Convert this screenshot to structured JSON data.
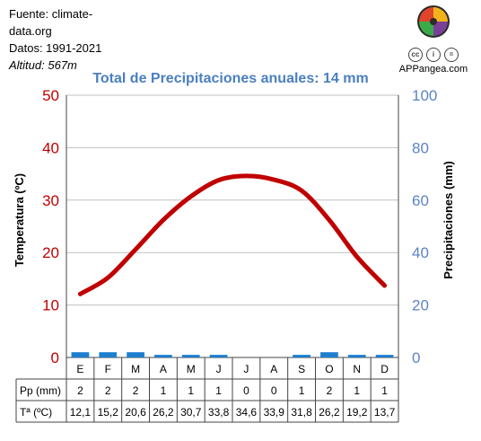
{
  "source": {
    "line1": "Fuente: climate-",
    "line2": "data.org",
    "period": "Datos: 1991-2021",
    "altitude": "Altitud: 567m"
  },
  "brand": {
    "site": "APPangea.com"
  },
  "colors": {
    "temp": "#c00000",
    "precip": "#1e7fd0",
    "axis_right": "#5b84c4",
    "title": "#4a7fc0"
  },
  "chart_data": {
    "type": "line",
    "title": "Total de Precipitaciones anuales: 14 mm",
    "categories": [
      "E",
      "F",
      "M",
      "A",
      "M",
      "J",
      "J",
      "A",
      "S",
      "O",
      "N",
      "D"
    ],
    "series": [
      {
        "name": "Tª (ºC)",
        "values": [
          12.1,
          15.2,
          20.6,
          26.2,
          30.7,
          33.8,
          34.6,
          33.9,
          31.8,
          26.2,
          19.2,
          13.7
        ]
      },
      {
        "name": "Pp (mm)",
        "values": [
          2,
          2,
          2,
          1,
          1,
          1,
          0,
          0,
          1,
          2,
          1,
          1
        ]
      }
    ],
    "ylabel_left": "Temperatura (ºC)",
    "ylabel_right": "Precipitaciones (mm)",
    "ylim_left": [
      0,
      50
    ],
    "ylim_right": [
      0,
      100
    ],
    "left_ticks": [
      "0",
      "10",
      "20",
      "30",
      "40",
      "50"
    ],
    "right_ticks": [
      "0",
      "20",
      "40",
      "60",
      "80",
      "100"
    ],
    "table_rows": [
      {
        "label": "Pp (mm)",
        "values": [
          "2",
          "2",
          "2",
          "1",
          "1",
          "1",
          "0",
          "0",
          "1",
          "2",
          "1",
          "1"
        ]
      },
      {
        "label": "Tª (ºC)",
        "values": [
          "12,1",
          "15,2",
          "20,6",
          "26,2",
          "30,7",
          "33,8",
          "34,6",
          "33,9",
          "31,8",
          "26,2",
          "19,2",
          "13,7"
        ]
      }
    ],
    "grid": true
  }
}
